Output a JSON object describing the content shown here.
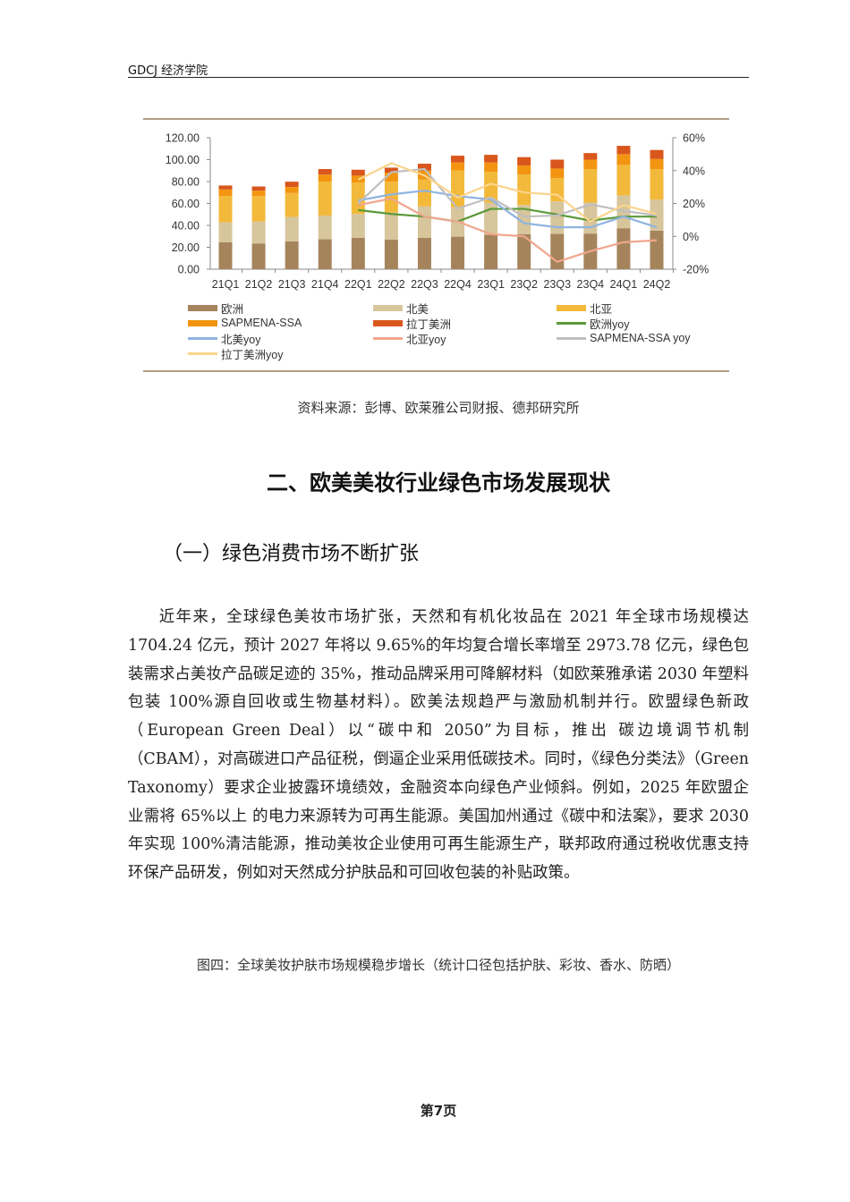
{
  "header": {
    "title": "GDCJ 经济学院"
  },
  "chart_data": {
    "type": "bar",
    "stacked": true,
    "categories": [
      "21Q1",
      "21Q2",
      "21Q3",
      "21Q4",
      "22Q1",
      "22Q2",
      "22Q3",
      "22Q4",
      "23Q1",
      "23Q2",
      "23Q3",
      "23Q4",
      "24Q1",
      "24Q2"
    ],
    "left_axis": {
      "range": [
        0,
        120
      ],
      "ticks": [
        "0.00",
        "20.00",
        "40.00",
        "60.00",
        "80.00",
        "100.00",
        "120.00"
      ]
    },
    "right_axis": {
      "range": [
        -20,
        60
      ],
      "ticks": [
        "-20%",
        "0%",
        "20%",
        "40%",
        "60%"
      ]
    },
    "grid": false,
    "legend_position": "bottom",
    "series": [
      {
        "name": "欧洲",
        "kind": "bar",
        "color": "#a5845c",
        "values": [
          24.5,
          23.5,
          25.4,
          27.3,
          28.6,
          27.0,
          28.6,
          29.7,
          31.4,
          32.0,
          32.2,
          32.5,
          37.4,
          35.2
        ]
      },
      {
        "name": "北美",
        "kind": "bar",
        "color": "#d7c59c",
        "values": [
          18.3,
          20.1,
          22.3,
          21.7,
          21.9,
          24.8,
          28.7,
          26.8,
          29.4,
          26.6,
          29.7,
          28.3,
          30.0,
          28.3
        ]
      },
      {
        "name": "北亚",
        "kind": "bar",
        "color": "#f3b93a",
        "values": [
          24.0,
          23.2,
          21.8,
          30.9,
          28.5,
          28.1,
          24.5,
          33.5,
          28.2,
          27.8,
          21.3,
          30.6,
          27.8,
          27.9
        ]
      },
      {
        "name": "SAPMENA-SSA",
        "kind": "bar",
        "color": "#f39510",
        "values": [
          6.0,
          4.9,
          5.5,
          6.5,
          6.4,
          8.1,
          8.2,
          7.4,
          8.4,
          8.2,
          8.7,
          8.6,
          9.8,
          9.2
        ]
      },
      {
        "name": "拉丁美洲",
        "kind": "bar",
        "color": "#d9571c",
        "values": [
          3.6,
          3.8,
          4.9,
          5.0,
          5.4,
          4.7,
          6.3,
          6.2,
          7.0,
          7.7,
          8.1,
          6.0,
          7.6,
          8.2
        ]
      },
      {
        "name": "欧洲yoy",
        "kind": "line",
        "axis": "right",
        "color": "#5b9a3a",
        "values": [
          null,
          null,
          null,
          null,
          16,
          13.6,
          12,
          9,
          16.7,
          16.7,
          13.3,
          9.6,
          12,
          12
        ]
      },
      {
        "name": "北美yoy",
        "kind": "line",
        "axis": "right",
        "color": "#8fb4e0",
        "values": [
          null,
          null,
          null,
          null,
          21.8,
          25.5,
          27.8,
          24.5,
          22.4,
          8,
          5.5,
          5.5,
          12,
          5.5
        ]
      },
      {
        "name": "北亚yoy",
        "kind": "line",
        "axis": "right",
        "color": "#f0a68c",
        "values": [
          null,
          null,
          null,
          null,
          19,
          23,
          12,
          9,
          1.3,
          0,
          -15.5,
          -9,
          -3.6,
          -2.4
        ]
      },
      {
        "name": "SAPMENA-SSA yoy",
        "kind": "line",
        "axis": "right",
        "color": "#bfbfbf",
        "values": [
          null,
          null,
          null,
          null,
          20,
          39,
          41,
          17,
          23.6,
          12,
          12.7,
          19.5,
          15.5,
          12.7
        ]
      },
      {
        "name": "拉丁美洲yoy",
        "kind": "line",
        "axis": "right",
        "color": "#fcd48c",
        "values": [
          null,
          null,
          null,
          null,
          34.5,
          44.5,
          37,
          23.6,
          32,
          26.7,
          25.3,
          9,
          19,
          13.6
        ]
      }
    ]
  },
  "source": "资料来源：彭博、欧莱雅公司财报、德邦研究所",
  "section_title": "二、欧美美妆行业绿色市场发展现状",
  "subsection_title": "（一）绿色消费市场不断扩张",
  "body": "近年来，全球绿色美妆市场扩张，天然和有机化妆品在 2021 年全球市场规模达 1704.24 亿元，预计 2027 年将以 9.65%的年均复合增长率增至 2973.78 亿元，绿色包装需求占美妆产品碳足迹的 35%，推动品牌采用可降解材料（如欧莱雅承诺 2030 年塑料包装 100%源自回收或生物基材料）。欧美法规趋严与激励机制并行。欧盟绿色新政（European Green Deal）以“碳中和 2050”为目标，推出 碳边境调节机制（CBAM），对高碳进口产品征税，倒逼企业采用低碳技术。同时，《绿色分类法》（Green Taxonomy）要求企业披露环境绩效，金融资本向绿色产业倾斜。例如，2025 年欧盟企业需将 65%以上 的电力来源转为可再生能源。美国加州通过《碳中和法案》，要求 2030 年实现 100%清洁能源，推动美妆企业使用可再生能源生产，联邦政府通过税收优惠支持环保产品研发，例如对天然成分护肤品和可回收包装的补贴政策。",
  "figure_caption": "图四：全球美妆护肤市场规模稳步增长（统计口径包括护肤、彩妆、香水、防晒）",
  "page_number": "第7页"
}
